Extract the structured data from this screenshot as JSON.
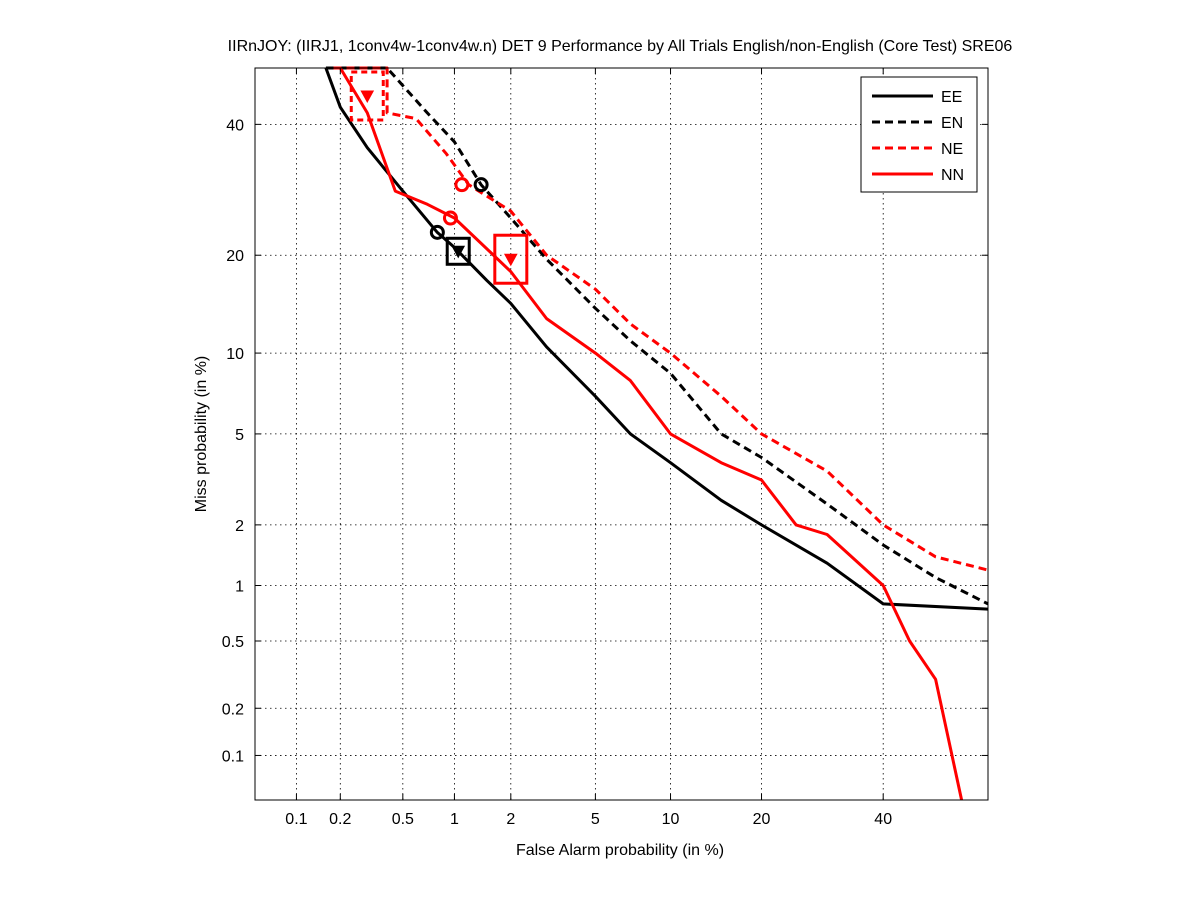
{
  "chart_data": {
    "type": "line",
    "title": "IIRnJOY: (IIRJ1, 1conv4w-1conv4w.n) DET 9 Performance by All Trials English/non-English (Core Test) SRE06",
    "xlabel": "False Alarm probability (in %)",
    "ylabel": "Miss probability (in %)",
    "scale": "probit",
    "xlim": [
      0.05,
      60
    ],
    "ylim": [
      0.05,
      50
    ],
    "xticks": [
      0.1,
      0.2,
      0.5,
      1,
      2,
      5,
      10,
      20,
      40
    ],
    "xtick_labels": [
      "0.1",
      "0.2",
      "0.5",
      "1",
      "2",
      "5",
      "10",
      "20",
      "40"
    ],
    "yticks": [
      0.1,
      0.2,
      0.5,
      1,
      2,
      5,
      10,
      20,
      40
    ],
    "ytick_labels": [
      "0.1",
      "0.2",
      "0.5",
      "1",
      "2",
      "5",
      "10",
      "20",
      "40"
    ],
    "grid": true,
    "legend_position": "top-right",
    "series": [
      {
        "name": "EE",
        "color": "#000000",
        "style": "solid",
        "points": [
          [
            0.16,
            50
          ],
          [
            0.2,
            43
          ],
          [
            0.3,
            36
          ],
          [
            0.5,
            29
          ],
          [
            0.8,
            23
          ],
          [
            1.0,
            21
          ],
          [
            1.5,
            17
          ],
          [
            2,
            14.5
          ],
          [
            3,
            10.5
          ],
          [
            5,
            7
          ],
          [
            7,
            5
          ],
          [
            10,
            3.8
          ],
          [
            15,
            2.6
          ],
          [
            20,
            2.0
          ],
          [
            30,
            1.3
          ],
          [
            40,
            0.8
          ],
          [
            60,
            0.75
          ]
        ],
        "min_dcf": [
          0.8,
          23
        ],
        "act_dcf": [
          1.05,
          20.5
        ]
      },
      {
        "name": "EN",
        "color": "#000000",
        "style": "dashed",
        "points": [
          [
            0.16,
            50
          ],
          [
            0.4,
            50
          ],
          [
            0.7,
            42
          ],
          [
            1.0,
            37
          ],
          [
            1.4,
            30
          ],
          [
            2,
            25
          ],
          [
            3,
            19.5
          ],
          [
            5,
            14
          ],
          [
            7,
            11
          ],
          [
            10,
            8.5
          ],
          [
            15,
            5
          ],
          [
            20,
            4
          ],
          [
            30,
            2.5
          ],
          [
            40,
            1.6
          ],
          [
            50,
            1.1
          ],
          [
            60,
            0.8
          ]
        ],
        "min_dcf": [
          1.4,
          30
        ],
        "act_dcf": null
      },
      {
        "name": "NE",
        "color": "#ff0000",
        "style": "dashed",
        "points": [
          [
            0.18,
            50
          ],
          [
            0.4,
            50
          ],
          [
            0.4,
            42
          ],
          [
            0.6,
            41
          ],
          [
            0.9,
            35
          ],
          [
            1.2,
            30
          ],
          [
            2,
            26
          ],
          [
            3,
            20
          ],
          [
            5,
            16
          ],
          [
            7,
            12.5
          ],
          [
            10,
            10
          ],
          [
            15,
            7
          ],
          [
            20,
            5
          ],
          [
            30,
            3.5
          ],
          [
            40,
            2.0
          ],
          [
            50,
            1.4
          ],
          [
            60,
            1.2
          ]
        ],
        "min_dcf": [
          1.1,
          30
        ],
        "act_dcf": [
          0.3,
          45
        ]
      },
      {
        "name": "NN",
        "color": "#ff0000",
        "style": "solid",
        "points": [
          [
            0.2,
            50
          ],
          [
            0.3,
            42
          ],
          [
            0.45,
            29
          ],
          [
            0.7,
            27
          ],
          [
            1.0,
            25
          ],
          [
            2,
            18
          ],
          [
            3,
            13
          ],
          [
            5,
            10
          ],
          [
            7,
            8
          ],
          [
            10,
            5
          ],
          [
            15,
            3.8
          ],
          [
            20,
            3.2
          ],
          [
            25,
            2.0
          ],
          [
            30,
            1.8
          ],
          [
            40,
            1.0
          ],
          [
            45,
            0.5
          ],
          [
            50,
            0.3
          ],
          [
            55,
            0.05
          ]
        ],
        "min_dcf": [
          0.95,
          25
        ],
        "act_dcf": [
          2.0,
          19.5
        ]
      }
    ]
  }
}
